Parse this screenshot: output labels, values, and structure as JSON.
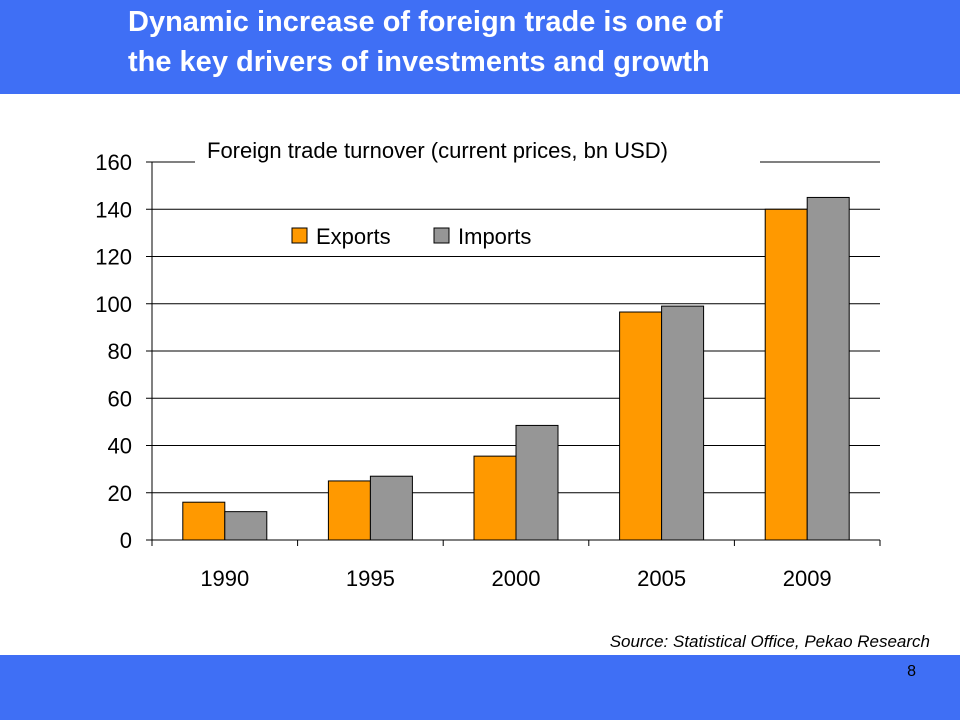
{
  "slide": {
    "title_line1": "Dynamic increase of foreign trade is one of",
    "title_line2": "the key drivers of investments and growth",
    "source": "Source: Statistical Office, Pekao Research",
    "page_number": "8"
  },
  "colors": {
    "banner": "#3f6ff5",
    "exports": "#ff9900",
    "imports": "#969696"
  },
  "chart_data": {
    "type": "bar",
    "title": "Foreign trade turnover (current prices, bn USD)",
    "categories": [
      "1990",
      "1995",
      "2000",
      "2005",
      "2009"
    ],
    "series": [
      {
        "name": "Exports",
        "values": [
          16,
          25,
          35.5,
          96.5,
          140
        ]
      },
      {
        "name": "Imports",
        "values": [
          12,
          27,
          48.5,
          99,
          145
        ]
      }
    ],
    "ylim": [
      0,
      160
    ],
    "yticks": [
      0,
      20,
      40,
      60,
      80,
      100,
      120,
      140,
      160
    ],
    "grid": true,
    "legend": "top-left",
    "xlabel": "",
    "ylabel": ""
  }
}
